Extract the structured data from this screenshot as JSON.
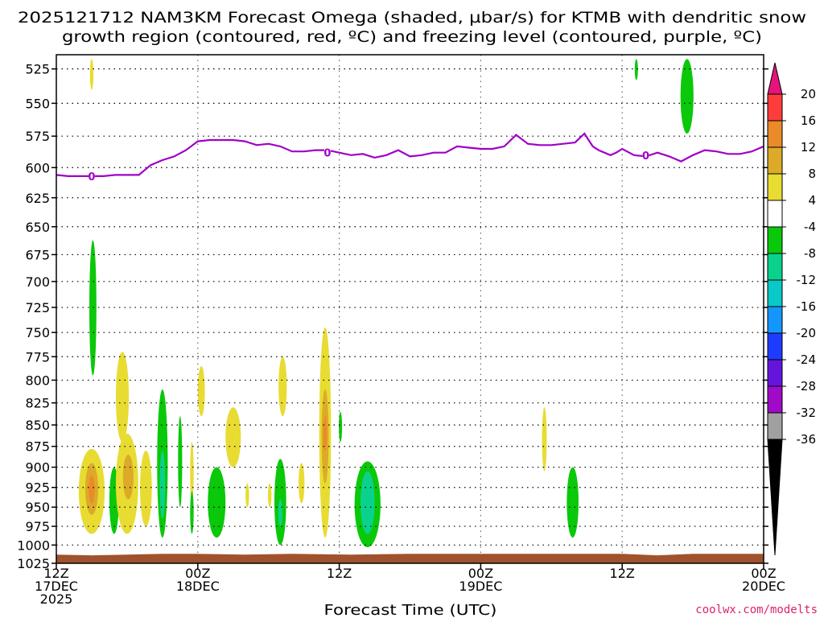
{
  "chart_data": {
    "type": "heatmap",
    "title_line1": "2025121712 NAM3KM Forecast Omega (shaded, µbar/s) for KTMB with dendritic snow",
    "title_line2": "growth region (contoured, red, ºC) and freezing level (contoured, purple, ºC)",
    "xlabel": "Forecast Time (UTC)",
    "credit": "coolwx.com/modelts",
    "y_axis": {
      "label": "",
      "scale": "pressure (hPa), log",
      "ticks": [
        "525",
        "550",
        "575",
        "600",
        "625",
        "650",
        "675",
        "700",
        "725",
        "750",
        "775",
        "800",
        "825",
        "850",
        "875",
        "900",
        "925",
        "950",
        "975",
        "1000",
        "1025"
      ],
      "range": [
        1025,
        515
      ]
    },
    "x_axis": {
      "range_hours": [
        0,
        60
      ],
      "ticks": [
        {
          "hour": 0,
          "label1": "12Z",
          "label2": "17DEC",
          "label3": "2025"
        },
        {
          "hour": 12,
          "label1": "00Z",
          "label2": "18DEC",
          "label3": ""
        },
        {
          "hour": 24,
          "label1": "12Z",
          "label2": "",
          "label3": ""
        },
        {
          "hour": 36,
          "label1": "00Z",
          "label2": "19DEC",
          "label3": ""
        },
        {
          "hour": 48,
          "label1": "12Z",
          "label2": "",
          "label3": ""
        },
        {
          "hour": 60,
          "label1": "00Z",
          "label2": "20DEC",
          "label3": ""
        }
      ]
    },
    "colorbar": {
      "labels": [
        "20",
        "16",
        "12",
        "8",
        "4",
        "-4",
        "-8",
        "-12",
        "-16",
        "-20",
        "-24",
        "-28",
        "-32",
        "-36"
      ],
      "bins": [
        {
          "from": 16,
          "to": 20,
          "color": "#ff3c3c"
        },
        {
          "from": 12,
          "to": 16,
          "color": "#ea8a28"
        },
        {
          "from": 8,
          "to": 12,
          "color": "#dcaa28"
        },
        {
          "from": 4,
          "to": 8,
          "color": "#e8dc32"
        },
        {
          "from": -4,
          "to": 4,
          "color": "#ffffff"
        },
        {
          "from": -8,
          "to": -4,
          "color": "#0ac80a"
        },
        {
          "from": -12,
          "to": -8,
          "color": "#0ad28c"
        },
        {
          "from": -16,
          "to": -12,
          "color": "#0ac8c8"
        },
        {
          "from": -20,
          "to": -16,
          "color": "#1496ff"
        },
        {
          "from": -24,
          "to": -20,
          "color": "#1e3cff"
        },
        {
          "from": -28,
          "to": -24,
          "color": "#6414dc"
        },
        {
          "from": -32,
          "to": -28,
          "color": "#a00ac8"
        },
        {
          "from": -36,
          "to": -32,
          "color": "#a0a0a0"
        }
      ],
      "top_arrow_color": "#e6147a",
      "bottom_arrow_color": "#000000"
    },
    "colors": {
      "freezing_level": "#a000c8",
      "ground": "#a0522d"
    },
    "freezing_level": {
      "contour_value": "0",
      "label_points": [
        [
          3.0,
          607
        ],
        [
          23.0,
          588
        ],
        [
          50.0,
          590
        ]
      ],
      "points": [
        [
          0,
          606
        ],
        [
          1,
          607
        ],
        [
          2,
          607
        ],
        [
          3,
          607
        ],
        [
          4,
          607
        ],
        [
          5,
          606
        ],
        [
          6,
          606
        ],
        [
          7,
          606
        ],
        [
          8,
          598
        ],
        [
          9,
          594
        ],
        [
          10,
          591
        ],
        [
          11,
          586
        ],
        [
          12,
          579
        ],
        [
          13,
          578
        ],
        [
          14,
          578
        ],
        [
          15,
          578
        ],
        [
          16,
          579
        ],
        [
          17,
          582
        ],
        [
          18,
          581
        ],
        [
          19,
          583
        ],
        [
          20,
          587
        ],
        [
          21,
          587
        ],
        [
          22,
          586
        ],
        [
          23,
          586
        ],
        [
          24,
          588
        ],
        [
          25,
          590
        ],
        [
          26,
          589
        ],
        [
          27,
          592
        ],
        [
          28,
          590
        ],
        [
          29,
          586
        ],
        [
          30,
          591
        ],
        [
          31,
          590
        ],
        [
          32,
          588
        ],
        [
          33,
          588
        ],
        [
          34,
          583
        ],
        [
          35,
          584
        ],
        [
          36,
          585
        ],
        [
          37,
          585
        ],
        [
          38,
          583
        ],
        [
          39,
          574
        ],
        [
          40,
          581
        ],
        [
          41,
          582
        ],
        [
          42,
          582
        ],
        [
          43,
          581
        ],
        [
          44,
          580
        ],
        [
          44.8,
          573
        ],
        [
          45.5,
          583
        ],
        [
          46,
          586
        ],
        [
          47,
          590
        ],
        [
          47.5,
          588
        ],
        [
          48,
          585
        ],
        [
          49,
          590
        ],
        [
          50,
          591
        ],
        [
          51,
          588
        ],
        [
          52,
          591
        ],
        [
          53,
          595
        ],
        [
          54,
          590
        ],
        [
          55,
          586
        ],
        [
          56,
          587
        ],
        [
          57,
          589
        ],
        [
          58,
          589
        ],
        [
          59,
          587
        ],
        [
          60,
          583
        ]
      ]
    },
    "omega_features": [
      {
        "x": 3.0,
        "p_top": 518,
        "p_bot": 540,
        "w": 0.3,
        "v": 5
      },
      {
        "x": 49.2,
        "p_top": 518,
        "p_bot": 533,
        "w": 0.2,
        "v": -5
      },
      {
        "x": 53.5,
        "p_top": 518,
        "p_bot": 573,
        "w": 1.1,
        "v": -6
      },
      {
        "x": 3.1,
        "p_top": 662,
        "p_bot": 795,
        "w": 0.6,
        "v": -6
      },
      {
        "x": 3.0,
        "p_top": 878,
        "p_bot": 985,
        "w": 2.2,
        "v": 6
      },
      {
        "x": 3.0,
        "p_top": 895,
        "p_bot": 960,
        "w": 1.1,
        "v": 9
      },
      {
        "x": 3.0,
        "p_top": 910,
        "p_bot": 945,
        "w": 0.5,
        "v": 13
      },
      {
        "x": 4.9,
        "p_top": 900,
        "p_bot": 985,
        "w": 0.8,
        "v": -6
      },
      {
        "x": 5.6,
        "p_top": 770,
        "p_bot": 870,
        "w": 1.1,
        "v": 5
      },
      {
        "x": 6.0,
        "p_top": 860,
        "p_bot": 985,
        "w": 1.9,
        "v": 5
      },
      {
        "x": 6.1,
        "p_top": 885,
        "p_bot": 940,
        "w": 0.9,
        "v": 9
      },
      {
        "x": 7.6,
        "p_top": 880,
        "p_bot": 975,
        "w": 1.0,
        "v": 5
      },
      {
        "x": 9.0,
        "p_top": 810,
        "p_bot": 990,
        "w": 0.9,
        "v": -6
      },
      {
        "x": 9.0,
        "p_top": 880,
        "p_bot": 965,
        "w": 0.45,
        "v": -10
      },
      {
        "x": 10.5,
        "p_top": 840,
        "p_bot": 950,
        "w": 0.35,
        "v": -5
      },
      {
        "x": 11.5,
        "p_top": 870,
        "p_bot": 945,
        "w": 0.3,
        "v": 5
      },
      {
        "x": 11.5,
        "p_top": 930,
        "p_bot": 985,
        "w": 0.3,
        "v": -5
      },
      {
        "x": 12.3,
        "p_top": 785,
        "p_bot": 840,
        "w": 0.6,
        "v": 5
      },
      {
        "x": 13.6,
        "p_top": 900,
        "p_bot": 990,
        "w": 1.5,
        "v": -6
      },
      {
        "x": 15.0,
        "p_top": 830,
        "p_bot": 900,
        "w": 1.3,
        "v": 5
      },
      {
        "x": 16.2,
        "p_top": 920,
        "p_bot": 950,
        "w": 0.3,
        "v": 5
      },
      {
        "x": 18.1,
        "p_top": 920,
        "p_bot": 950,
        "w": 0.3,
        "v": 5
      },
      {
        "x": 19.2,
        "p_top": 775,
        "p_bot": 840,
        "w": 0.7,
        "v": 5
      },
      {
        "x": 19.0,
        "p_top": 890,
        "p_bot": 1000,
        "w": 1.0,
        "v": -6
      },
      {
        "x": 19.0,
        "p_top": 940,
        "p_bot": 975,
        "w": 0.35,
        "v": -10
      },
      {
        "x": 20.8,
        "p_top": 895,
        "p_bot": 945,
        "w": 0.5,
        "v": 5
      },
      {
        "x": 22.8,
        "p_top": 745,
        "p_bot": 990,
        "w": 1.0,
        "v": 6
      },
      {
        "x": 22.8,
        "p_top": 810,
        "p_bot": 920,
        "w": 0.6,
        "v": 9
      },
      {
        "x": 22.8,
        "p_top": 840,
        "p_bot": 880,
        "w": 0.3,
        "v": 13
      },
      {
        "x": 24.1,
        "p_top": 835,
        "p_bot": 870,
        "w": 0.25,
        "v": -5
      },
      {
        "x": 26.4,
        "p_top": 893,
        "p_bot": 1003,
        "w": 2.2,
        "v": -6
      },
      {
        "x": 26.4,
        "p_top": 905,
        "p_bot": 985,
        "w": 1.2,
        "v": -10
      },
      {
        "x": 41.4,
        "p_top": 830,
        "p_bot": 905,
        "w": 0.4,
        "v": 5
      },
      {
        "x": 43.8,
        "p_top": 900,
        "p_bot": 990,
        "w": 1.0,
        "v": -6
      }
    ]
  }
}
